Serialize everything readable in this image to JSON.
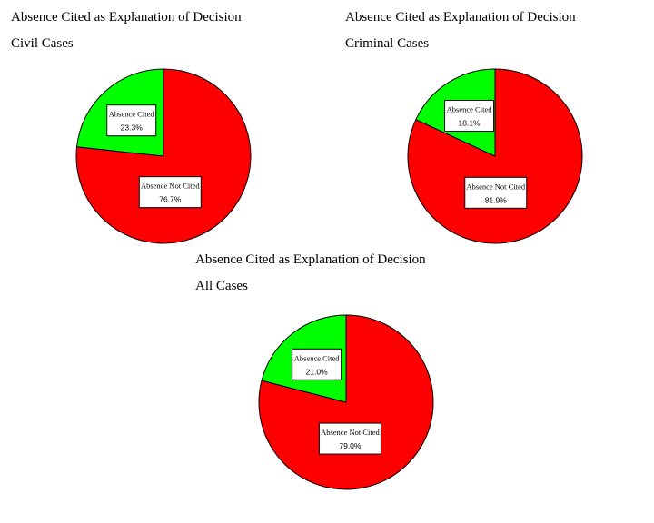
{
  "chart_data": [
    {
      "type": "pie",
      "title": "Absence Cited as Explanation of Decision",
      "subtitle": "Civil Cases",
      "slices": [
        {
          "label": "Absence Cited",
          "value": 23.3,
          "display": "23.3%",
          "color": "#00ff00"
        },
        {
          "label": "Absence Not Cited",
          "value": 76.7,
          "display": "76.7%",
          "color": "#ff0000"
        }
      ]
    },
    {
      "type": "pie",
      "title": "Absence Cited as Explanation of Decision",
      "subtitle": "Criminal Cases",
      "slices": [
        {
          "label": "Absence Cited",
          "value": 18.1,
          "display": "18.1%",
          "color": "#00ff00"
        },
        {
          "label": "Absence Not Cited",
          "value": 81.9,
          "display": "81.9%",
          "color": "#ff0000"
        }
      ]
    },
    {
      "type": "pie",
      "title": "Absence Cited as Explanation of Decision",
      "subtitle": "All Cases",
      "slices": [
        {
          "label": "Absence Cited",
          "value": 21.0,
          "display": "21.0%",
          "color": "#00ff00"
        },
        {
          "label": "Absence Not Cited",
          "value": 79.0,
          "display": "79.0%",
          "color": "#ff0000"
        }
      ]
    }
  ]
}
